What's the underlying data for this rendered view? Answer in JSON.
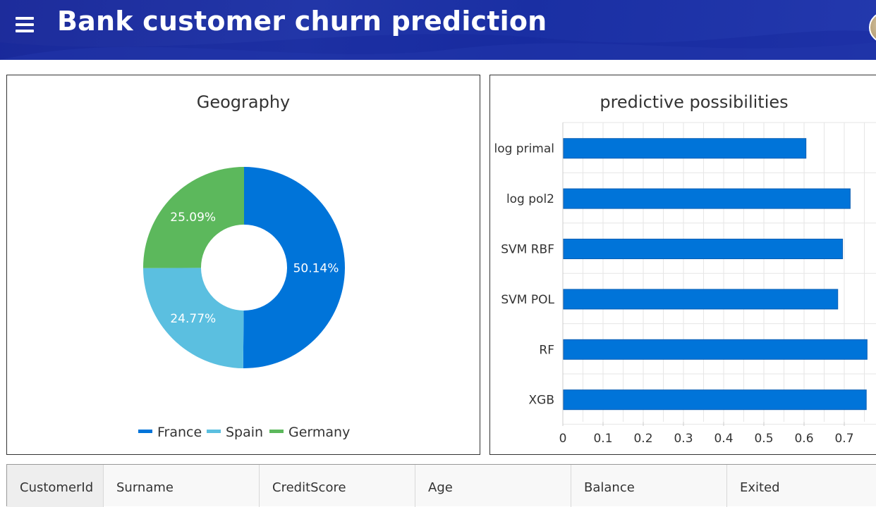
{
  "header": {
    "title": "Bank customer churn prediction",
    "menu_icon": "hamburger-menu-icon",
    "avatar_icon": "user-avatar",
    "background_color": "#1f31a5"
  },
  "geography_chart": {
    "title": "Geography",
    "chart_data": {
      "type": "pie",
      "donut": true,
      "title": "Geography",
      "legend": "bottom",
      "slices": [
        {
          "name": "France",
          "value": 50.14,
          "label": "50.14%",
          "color": "#0074d9"
        },
        {
          "name": "Spain",
          "value": 24.77,
          "label": "24.77%",
          "color": "#5bbfe0"
        },
        {
          "name": "Germany",
          "value": 25.09,
          "label": "25.09%",
          "color": "#5cb85c"
        }
      ]
    }
  },
  "predictive_chart": {
    "title": "predictive possibilities",
    "chart_data": {
      "type": "bar",
      "orientation": "horizontal",
      "title": "predictive possibilities",
      "categories": [
        "log primal",
        "log pol2",
        "SVM RBF",
        "SVM POL",
        "RF",
        "XGB"
      ],
      "values": [
        0.603,
        0.713,
        0.694,
        0.682,
        0.755,
        0.753
      ],
      "xlim": [
        0,
        0.8
      ],
      "xticks": [
        "0",
        "0.1",
        "0.2",
        "0.3",
        "0.4",
        "0.5",
        "0.6",
        "0.7"
      ],
      "grid": true,
      "bar_color": "#0074d9"
    }
  },
  "table": {
    "columns": [
      "CustomerId",
      "Surname",
      "CreditScore",
      "Age",
      "Balance",
      "Exited"
    ]
  }
}
